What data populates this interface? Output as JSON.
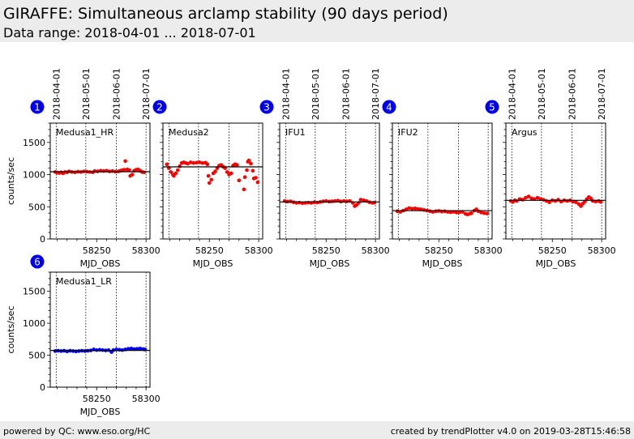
{
  "header": {
    "title": "GIRAFFE: Simultaneous arclamp stability (90 days period)",
    "data_range": "Data range: 2018-04-01 ... 2018-07-01"
  },
  "footer": {
    "left": "powered by QC: www.eso.org/HC",
    "right": "created by trendPlotter v4.0 on 2019-03-28T15:46:58"
  },
  "colors": {
    "red": "#ff0000",
    "blue": "#0000ff",
    "badge": "#0000ee"
  },
  "chart_data": [
    {
      "type": "scatter",
      "id": 1,
      "label": "Medusa1_HR",
      "color": "#ff0000",
      "xlabel": "MJD_OBS",
      "ylabel": "counts/sec",
      "xlim": [
        58203,
        58304
      ],
      "ylim": [
        0,
        1800
      ],
      "xticks": [
        58250,
        58300
      ],
      "yticks": [
        0,
        500,
        1000,
        1500
      ],
      "date_ticks": [
        {
          "mjd": 58209,
          "label": "2018-04-01"
        },
        {
          "mjd": 58239,
          "label": "2018-05-01"
        },
        {
          "mjd": 58270,
          "label": "2018-06-01"
        },
        {
          "mjd": 58300,
          "label": "2018-07-01"
        }
      ],
      "mean": 1045,
      "points": [
        [
          58208,
          1040
        ],
        [
          58210,
          1030
        ],
        [
          58212,
          1025
        ],
        [
          58214,
          1035
        ],
        [
          58216,
          1020
        ],
        [
          58218,
          1040
        ],
        [
          58220,
          1035
        ],
        [
          58222,
          1050
        ],
        [
          58225,
          1040
        ],
        [
          58228,
          1035
        ],
        [
          58231,
          1045
        ],
        [
          58234,
          1040
        ],
        [
          58237,
          1050
        ],
        [
          58240,
          1045
        ],
        [
          58243,
          1040
        ],
        [
          58246,
          1035
        ],
        [
          58248,
          1055
        ],
        [
          58251,
          1050
        ],
        [
          58254,
          1060
        ],
        [
          58257,
          1055
        ],
        [
          58260,
          1060
        ],
        [
          58263,
          1050
        ],
        [
          58266,
          1055
        ],
        [
          58269,
          1045
        ],
        [
          58272,
          1050
        ],
        [
          58274,
          1060
        ],
        [
          58276,
          1070
        ],
        [
          58278,
          1075
        ],
        [
          58279,
          1210
        ],
        [
          58281,
          1080
        ],
        [
          58283,
          1070
        ],
        [
          58284,
          980
        ],
        [
          58286,
          1000
        ],
        [
          58288,
          1060
        ],
        [
          58290,
          1075
        ],
        [
          58292,
          1080
        ],
        [
          58294,
          1060
        ],
        [
          58296,
          1040
        ],
        [
          58298,
          1035
        ]
      ]
    },
    {
      "type": "scatter",
      "id": 2,
      "label": "Medusa2",
      "color": "#ff0000",
      "xlabel": "MJD_OBS",
      "ylabel": "",
      "xlim": [
        58203,
        58304
      ],
      "ylim": [
        0,
        1800
      ],
      "xticks": [
        58250,
        58300
      ],
      "yticks": [],
      "date_ticks": [
        {
          "mjd": 58209,
          "label": ""
        },
        {
          "mjd": 58239,
          "label": ""
        },
        {
          "mjd": 58270,
          "label": ""
        },
        {
          "mjd": 58300,
          "label": ""
        }
      ],
      "mean": 1120,
      "points": [
        [
          58207,
          1160
        ],
        [
          58209,
          1100
        ],
        [
          58211,
          1040
        ],
        [
          58213,
          1000
        ],
        [
          58214,
          980
        ],
        [
          58216,
          1020
        ],
        [
          58218,
          1070
        ],
        [
          58220,
          1130
        ],
        [
          58222,
          1180
        ],
        [
          58224,
          1190
        ],
        [
          58226,
          1180
        ],
        [
          58228,
          1170
        ],
        [
          58231,
          1190
        ],
        [
          58234,
          1180
        ],
        [
          58237,
          1185
        ],
        [
          58240,
          1190
        ],
        [
          58243,
          1180
        ],
        [
          58246,
          1185
        ],
        [
          58248,
          1160
        ],
        [
          58249,
          980
        ],
        [
          58250,
          870
        ],
        [
          58252,
          920
        ],
        [
          58254,
          1020
        ],
        [
          58256,
          1050
        ],
        [
          58258,
          1100
        ],
        [
          58260,
          1140
        ],
        [
          58262,
          1150
        ],
        [
          58264,
          1120
        ],
        [
          58266,
          1100
        ],
        [
          58268,
          1040
        ],
        [
          58270,
          1000
        ],
        [
          58272,
          1020
        ],
        [
          58274,
          1140
        ],
        [
          58276,
          1160
        ],
        [
          58278,
          1150
        ],
        [
          58280,
          910
        ],
        [
          58285,
          770
        ],
        [
          58286,
          960
        ],
        [
          58288,
          1070
        ],
        [
          58289,
          1200
        ],
        [
          58290,
          1220
        ],
        [
          58292,
          1170
        ],
        [
          58294,
          1060
        ],
        [
          58295,
          940
        ],
        [
          58297,
          950
        ],
        [
          58299,
          880
        ]
      ]
    },
    {
      "type": "scatter",
      "id": 3,
      "label": "IFU1",
      "color": "#ff0000",
      "xlabel": "MJD_OBS",
      "ylabel": "",
      "xlim": [
        58203,
        58304
      ],
      "ylim": [
        0,
        1800
      ],
      "xticks": [
        58250,
        58300
      ],
      "yticks": [],
      "date_ticks": [
        {
          "mjd": 58209,
          "label": "2018-04-01"
        },
        {
          "mjd": 58239,
          "label": "2018-05-01"
        },
        {
          "mjd": 58270,
          "label": "2018-06-01"
        },
        {
          "mjd": 58300,
          "label": "2018-07-01"
        }
      ],
      "mean": 575,
      "points": [
        [
          58208,
          590
        ],
        [
          58211,
          580
        ],
        [
          58214,
          585
        ],
        [
          58217,
          570
        ],
        [
          58220,
          560
        ],
        [
          58223,
          565
        ],
        [
          58226,
          555
        ],
        [
          58229,
          560
        ],
        [
          58232,
          565
        ],
        [
          58235,
          560
        ],
        [
          58238,
          570
        ],
        [
          58241,
          565
        ],
        [
          58244,
          575
        ],
        [
          58247,
          585
        ],
        [
          58250,
          590
        ],
        [
          58253,
          580
        ],
        [
          58256,
          585
        ],
        [
          58259,
          590
        ],
        [
          58262,
          595
        ],
        [
          58265,
          580
        ],
        [
          58268,
          590
        ],
        [
          58271,
          585
        ],
        [
          58274,
          590
        ],
        [
          58277,
          560
        ],
        [
          58279,
          510
        ],
        [
          58281,
          530
        ],
        [
          58283,
          560
        ],
        [
          58285,
          610
        ],
        [
          58288,
          600
        ],
        [
          58291,
          590
        ],
        [
          58294,
          570
        ],
        [
          58297,
          560
        ],
        [
          58299,
          565
        ]
      ]
    },
    {
      "type": "scatter",
      "id": 4,
      "label": "IFU2",
      "color": "#ff0000",
      "xlabel": "MJD_OBS",
      "ylabel": "",
      "xlim": [
        58203,
        58304
      ],
      "ylim": [
        0,
        1800
      ],
      "xticks": [
        58250,
        58300
      ],
      "yticks": [],
      "date_ticks": [
        {
          "mjd": 58209,
          "label": ""
        },
        {
          "mjd": 58239,
          "label": ""
        },
        {
          "mjd": 58270,
          "label": ""
        },
        {
          "mjd": 58300,
          "label": ""
        }
      ],
      "mean": 440,
      "points": [
        [
          58208,
          430
        ],
        [
          58211,
          420
        ],
        [
          58214,
          440
        ],
        [
          58217,
          460
        ],
        [
          58220,
          480
        ],
        [
          58223,
          470
        ],
        [
          58226,
          475
        ],
        [
          58229,
          465
        ],
        [
          58232,
          460
        ],
        [
          58235,
          450
        ],
        [
          58238,
          440
        ],
        [
          58241,
          430
        ],
        [
          58244,
          420
        ],
        [
          58247,
          430
        ],
        [
          58250,
          435
        ],
        [
          58253,
          425
        ],
        [
          58256,
          430
        ],
        [
          58259,
          420
        ],
        [
          58262,
          415
        ],
        [
          58265,
          420
        ],
        [
          58268,
          410
        ],
        [
          58271,
          415
        ],
        [
          58274,
          420
        ],
        [
          58277,
          390
        ],
        [
          58279,
          380
        ],
        [
          58281,
          390
        ],
        [
          58283,
          400
        ],
        [
          58286,
          440
        ],
        [
          58288,
          460
        ],
        [
          58290,
          430
        ],
        [
          58293,
          410
        ],
        [
          58296,
          400
        ],
        [
          58299,
          395
        ]
      ]
    },
    {
      "type": "scatter",
      "id": 5,
      "label": "Argus",
      "color": "#ff0000",
      "xlabel": "MJD_OBS",
      "ylabel": "",
      "xlim": [
        58203,
        58304
      ],
      "ylim": [
        0,
        1800
      ],
      "xticks": [
        58250,
        58300
      ],
      "yticks": [],
      "date_ticks": [
        {
          "mjd": 58209,
          "label": "2018-04-01"
        },
        {
          "mjd": 58239,
          "label": "2018-05-01"
        },
        {
          "mjd": 58270,
          "label": "2018-06-01"
        },
        {
          "mjd": 58300,
          "label": "2018-07-01"
        }
      ],
      "mean": 600,
      "points": [
        [
          58208,
          590
        ],
        [
          58210,
          575
        ],
        [
          58212,
          600
        ],
        [
          58214,
          590
        ],
        [
          58217,
          620
        ],
        [
          58220,
          610
        ],
        [
          58223,
          640
        ],
        [
          58226,
          660
        ],
        [
          58229,
          630
        ],
        [
          58232,
          620
        ],
        [
          58235,
          640
        ],
        [
          58238,
          620
        ],
        [
          58241,
          610
        ],
        [
          58244,
          590
        ],
        [
          58247,
          570
        ],
        [
          58250,
          600
        ],
        [
          58253,
          590
        ],
        [
          58256,
          610
        ],
        [
          58259,
          580
        ],
        [
          58262,
          600
        ],
        [
          58265,
          590
        ],
        [
          58268,
          600
        ],
        [
          58271,
          580
        ],
        [
          58274,
          570
        ],
        [
          58277,
          540
        ],
        [
          58279,
          510
        ],
        [
          58281,
          550
        ],
        [
          58283,
          580
        ],
        [
          58285,
          620
        ],
        [
          58287,
          650
        ],
        [
          58289,
          630
        ],
        [
          58291,
          590
        ],
        [
          58294,
          580
        ],
        [
          58297,
          590
        ],
        [
          58299,
          575
        ]
      ]
    },
    {
      "type": "scatter",
      "id": 6,
      "label": "Medusa1_LR",
      "color": "#0000ff",
      "xlabel": "MJD_OBS",
      "ylabel": "counts/sec",
      "xlim": [
        58203,
        58304
      ],
      "ylim": [
        0,
        1800
      ],
      "xticks": [
        58250,
        58300
      ],
      "yticks": [
        0,
        500,
        1000,
        1500
      ],
      "date_ticks": [
        {
          "mjd": 58209,
          "label": ""
        },
        {
          "mjd": 58239,
          "label": ""
        },
        {
          "mjd": 58270,
          "label": ""
        },
        {
          "mjd": 58300,
          "label": ""
        }
      ],
      "mean": 575,
      "points": [
        [
          58208,
          565
        ],
        [
          58211,
          570
        ],
        [
          58214,
          565
        ],
        [
          58217,
          570
        ],
        [
          58220,
          560
        ],
        [
          58223,
          570
        ],
        [
          58226,
          565
        ],
        [
          58229,
          560
        ],
        [
          58232,
          565
        ],
        [
          58235,
          570
        ],
        [
          58238,
          565
        ],
        [
          58241,
          570
        ],
        [
          58244,
          575
        ],
        [
          58247,
          590
        ],
        [
          58250,
          580
        ],
        [
          58253,
          585
        ],
        [
          58256,
          580
        ],
        [
          58259,
          575
        ],
        [
          58262,
          580
        ],
        [
          58265,
          550
        ],
        [
          58267,
          580
        ],
        [
          58270,
          590
        ],
        [
          58273,
          585
        ],
        [
          58276,
          580
        ],
        [
          58279,
          590
        ],
        [
          58282,
          600
        ],
        [
          58285,
          605
        ],
        [
          58288,
          595
        ],
        [
          58291,
          600
        ],
        [
          58294,
          605
        ],
        [
          58297,
          595
        ],
        [
          58299,
          590
        ]
      ]
    }
  ]
}
